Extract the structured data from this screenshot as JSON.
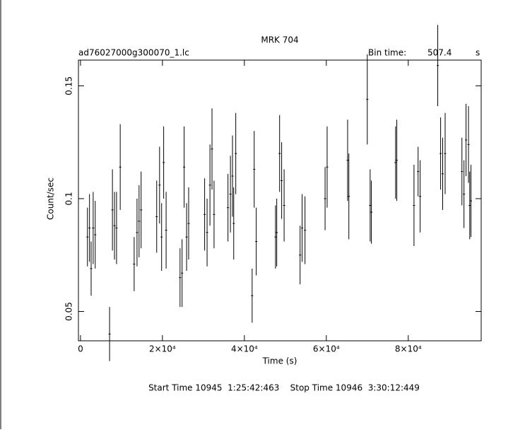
{
  "chart_data": {
    "type": "errorbar",
    "title": "MRK 704",
    "file_name": "ad76027000g300070_1.lc",
    "bin_time_label": "Bin time:",
    "bin_time": "507.4",
    "bin_time_unit": "s",
    "xlabel": "Time (s)",
    "ylabel": "Count/sec",
    "footer": "Start Time 10945  1:25:42:463    Stop Time 10946  3:30:12:449",
    "xlim": [
      -500,
      97800
    ],
    "ylim": [
      0.037,
      0.1614
    ],
    "xticks": [
      0,
      {
        "value": 20000,
        "label": "2×10⁴"
      },
      {
        "value": 40000,
        "label": "4×10⁴"
      },
      {
        "value": 60000,
        "label": "6×10⁴"
      },
      {
        "value": 80000,
        "label": "8×10⁴"
      }
    ],
    "yticks": [
      0.05,
      0.1,
      0.15
    ],
    "color": "#000000",
    "x": [
      1700,
      2200,
      2600,
      3100,
      3600,
      7100,
      7800,
      8300,
      8800,
      9700,
      13100,
      13800,
      14300,
      14800,
      18600,
      19300,
      19800,
      20300,
      20900,
      24300,
      24800,
      25300,
      25900,
      26400,
      30300,
      30900,
      31600,
      32100,
      32600,
      36000,
      36600,
      37100,
      37400,
      37900,
      41900,
      42400,
      42900,
      47600,
      47900,
      48600,
      49100,
      49700,
      53600,
      54100,
      54800,
      59700,
      60200,
      65200,
      65500,
      70000,
      70700,
      71000,
      76900,
      77200,
      81400,
      82400,
      82900,
      87200,
      87900,
      88400,
      89000,
      93100,
      93600,
      94100,
      94700,
      95000,
      95300
    ],
    "values": [
      0.083,
      0.087,
      0.069,
      0.087,
      0.084,
      0.04,
      0.095,
      0.088,
      0.087,
      0.114,
      0.071,
      0.085,
      0.09,
      0.095,
      0.092,
      0.106,
      0.083,
      0.116,
      0.086,
      0.065,
      0.067,
      0.114,
      0.083,
      0.089,
      0.093,
      0.085,
      0.106,
      0.122,
      0.093,
      0.096,
      0.102,
      0.11,
      0.089,
      0.12,
      0.057,
      0.113,
      0.081,
      0.083,
      0.085,
      0.12,
      0.108,
      0.097,
      0.075,
      0.087,
      0.086,
      0.1,
      0.114,
      0.117,
      0.101,
      0.144,
      0.097,
      0.094,
      0.116,
      0.117,
      0.097,
      0.112,
      0.101,
      0.159,
      0.12,
      0.111,
      0.12,
      0.112,
      0.102,
      0.126,
      0.124,
      0.097,
      0.099
    ],
    "errors": [
      0.013,
      0.015,
      0.012,
      0.016,
      0.015,
      0.012,
      0.018,
      0.015,
      0.016,
      0.019,
      0.012,
      0.015,
      0.016,
      0.017,
      0.016,
      0.017,
      0.015,
      0.016,
      0.017,
      0.013,
      0.015,
      0.018,
      0.015,
      0.016,
      0.016,
      0.015,
      0.018,
      0.018,
      0.015,
      0.015,
      0.017,
      0.018,
      0.016,
      0.018,
      0.012,
      0.017,
      0.015,
      0.014,
      0.015,
      0.017,
      0.017,
      0.016,
      0.013,
      0.015,
      0.015,
      0.014,
      0.018,
      0.018,
      0.019,
      0.02,
      0.016,
      0.014,
      0.016,
      0.018,
      0.018,
      0.011,
      0.016,
      0.018,
      0.016,
      0.016,
      0.018,
      0.015,
      0.015,
      0.016,
      0.017,
      0.015,
      0.016
    ]
  }
}
